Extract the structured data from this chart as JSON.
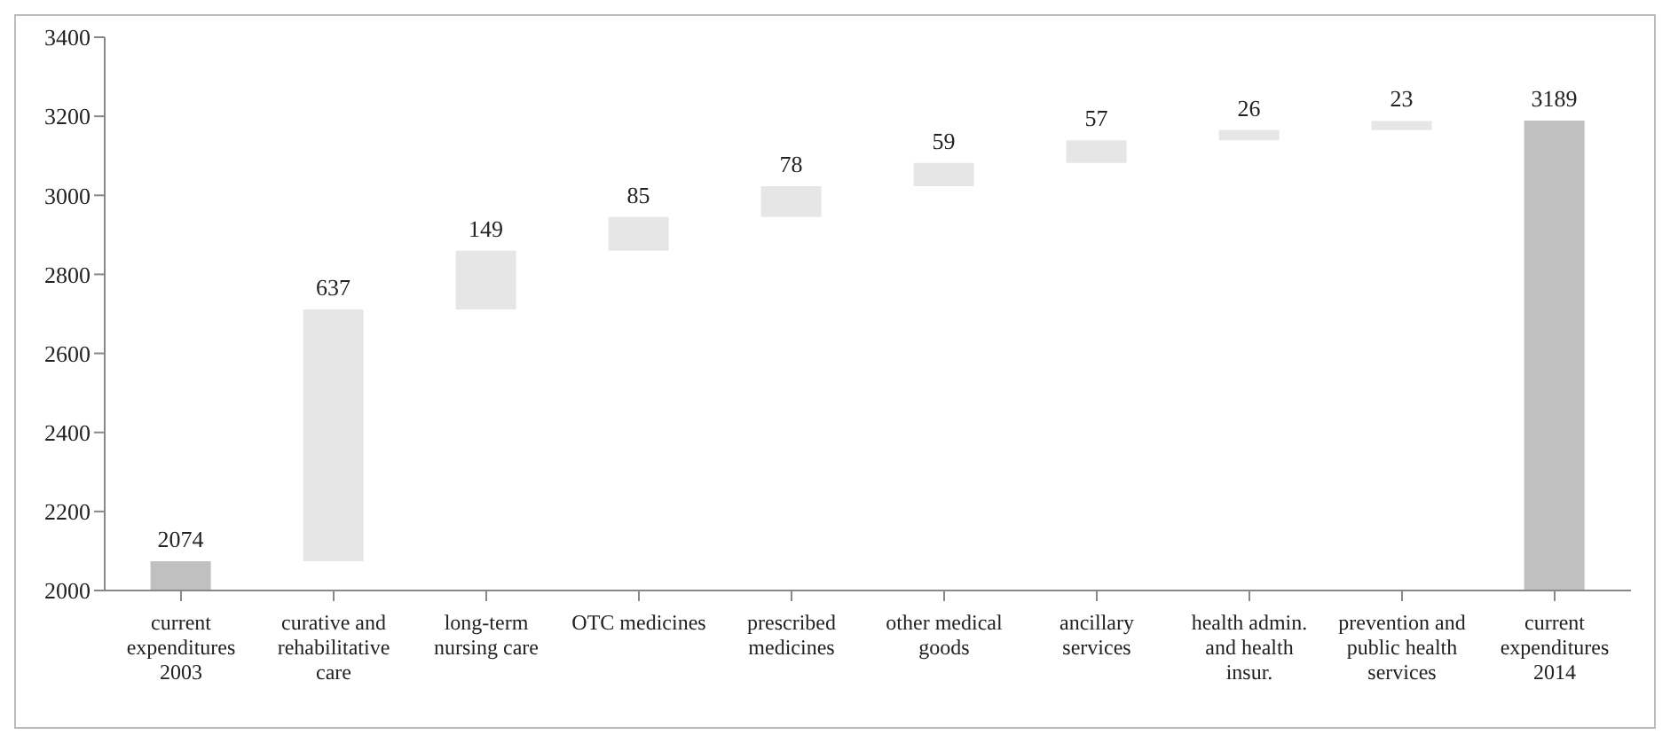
{
  "chart_data": {
    "type": "bar",
    "categories": [
      "current expenditures 2003",
      "curative and rehabilitative care",
      "long-term nursing care",
      "OTC medicines",
      "prescribed medicines",
      "other medical goods",
      "ancillary services",
      "health admin. and health insur.",
      "prevention and public health services",
      "current expenditures 2014"
    ],
    "values": [
      2074,
      637,
      149,
      85,
      78,
      59,
      57,
      26,
      23,
      3189
    ],
    "base": [
      null,
      2074,
      2711,
      2860,
      2945,
      3023,
      3082,
      3139,
      3165,
      null
    ],
    "colors": [
      "#c0c0c0",
      "#e6e6e6",
      "#e6e6e6",
      "#e6e6e6",
      "#e6e6e6",
      "#e6e6e6",
      "#e6e6e6",
      "#e6e6e6",
      "#e6e6e6",
      "#c0c0c0"
    ],
    "ylim": [
      2000,
      3400
    ],
    "yticks": [
      2000,
      2200,
      2400,
      2600,
      2800,
      3000,
      3200,
      3400
    ],
    "grid": false,
    "data_labels": true
  }
}
